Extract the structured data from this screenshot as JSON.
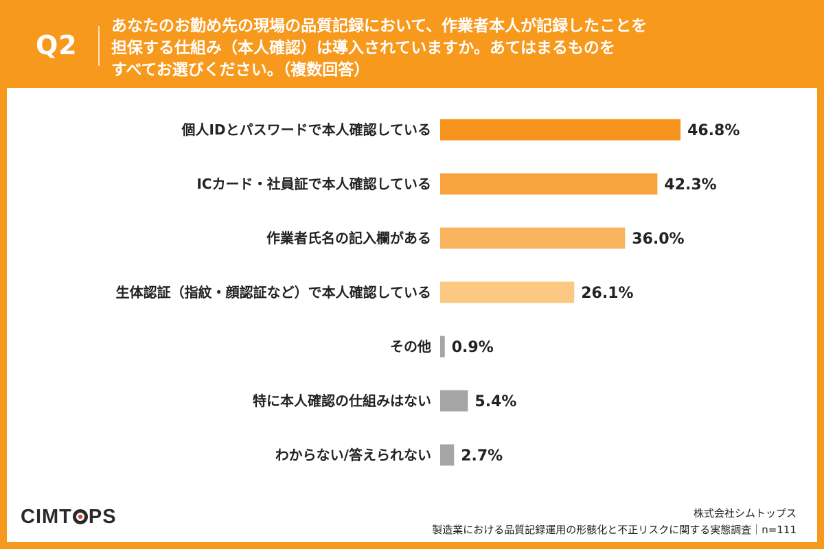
{
  "header": {
    "q_number": "Q2",
    "question_lines": [
      "あなたのお勤め先の現場の品質記録において、作業者本人が記録したことを",
      "担保する仕組み（本人確認）は導入されていますか。あてはまるものを",
      "すべてお選びください。（複数回答）"
    ]
  },
  "chart_data": {
    "type": "bar",
    "orientation": "horizontal",
    "categories": [
      "個人IDとパスワードで本人確認している",
      "ICカード・社員証で本人確認している",
      "作業者氏名の記入欄がある",
      "生体認証（指紋・顔認証など）で本人確認している",
      "その他",
      "特に本人確認の仕組みはない",
      "わからない/答えられない"
    ],
    "values": [
      46.8,
      42.3,
      36.0,
      26.1,
      0.9,
      5.4,
      2.7
    ],
    "value_labels": [
      "46.8%",
      "42.3%",
      "36.0%",
      "26.1%",
      "0.9%",
      "5.4%",
      "2.7%"
    ],
    "colors": [
      "#f7941d",
      "#f8a33d",
      "#f9b55e",
      "#fbc981",
      "#a5a5a5",
      "#a5a5a5",
      "#a5a5a5"
    ],
    "unit": "%",
    "xlim": [
      0,
      100
    ]
  },
  "footer": {
    "logo_text": "CIMTOPS",
    "company": "株式会社シムトップス",
    "survey": "製造業における品質記録運用の形骸化と不正リスクに関する実態調査｜n=111"
  }
}
